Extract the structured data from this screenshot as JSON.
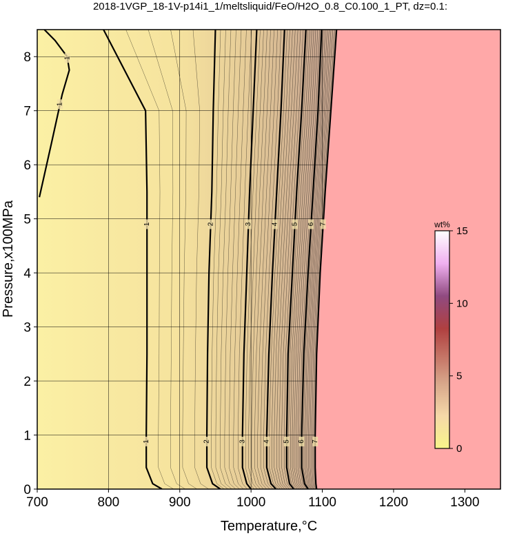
{
  "chart_data": {
    "type": "contour",
    "title": "2018-1VGP_18-1V-p14i1_1/meltsliquid/FeO/H2O_0.8_C0.100_1_PT, dz=0.1:",
    "xlabel": "Temperature,°C",
    "ylabel": "Pressure,x100MPa",
    "xlim": [
      700,
      1350
    ],
    "ylim": [
      0,
      8.5
    ],
    "xticks": [
      700,
      800,
      900,
      1000,
      1100,
      1200,
      1300
    ],
    "yticks": [
      0,
      1,
      2,
      3,
      4,
      5,
      6,
      7,
      8
    ],
    "grid": true,
    "series": [
      {
        "name": "1",
        "color": "#000000",
        "x": [
          703,
          720,
          735,
          745,
          742,
          725,
          710
        ],
        "values": [
          5.4,
          6.4,
          7.3,
          7.75,
          8.0,
          8.3,
          8.5
        ]
      },
      {
        "name": "1",
        "color": "#000000",
        "x": [
          793,
          852,
          854,
          854,
          854,
          853,
          853,
          862,
          875
        ],
        "values": [
          8.5,
          7.0,
          5.5,
          4.0,
          2.5,
          1.0,
          0.4,
          0.1,
          0
        ]
      },
      {
        "name": "2",
        "color": "#000000",
        "x": [
          950,
          947,
          945,
          941,
          939,
          938,
          938,
          946,
          957
        ],
        "values": [
          8.5,
          7.0,
          5.5,
          4.0,
          2.5,
          1.0,
          0.4,
          0.1,
          0
        ]
      },
      {
        "name": "3",
        "color": "#000000",
        "x": [
          1008,
          1003,
          998,
          994,
          990,
          988,
          988,
          994,
          1000
        ],
        "values": [
          8.5,
          7.0,
          5.5,
          4.0,
          2.5,
          1.0,
          0.4,
          0.1,
          0
        ]
      },
      {
        "name": "4",
        "color": "#000000",
        "x": [
          1047,
          1042,
          1036,
          1030,
          1025,
          1022,
          1022,
          1028,
          1035
        ],
        "values": [
          8.5,
          7.0,
          5.5,
          4.0,
          2.5,
          1.0,
          0.4,
          0.1,
          0
        ]
      },
      {
        "name": "5",
        "color": "#000000",
        "x": [
          1077,
          1071,
          1064,
          1058,
          1052,
          1050,
          1050,
          1054,
          1060
        ],
        "values": [
          8.5,
          7.0,
          5.5,
          4.0,
          2.5,
          1.0,
          0.4,
          0.1,
          0
        ]
      },
      {
        "name": "6",
        "color": "#000000",
        "x": [
          1099,
          1094,
          1087,
          1080,
          1074,
          1071,
          1071,
          1075,
          1080
        ],
        "values": [
          8.5,
          7.0,
          5.5,
          4.0,
          2.5,
          1.0,
          0.4,
          0.1,
          0
        ]
      },
      {
        "name": "7",
        "color": "#000000",
        "x": [
          1120,
          1112,
          1104,
          1097,
          1092,
          1090,
          1090,
          1091,
          1092
        ],
        "values": [
          8.5,
          7.0,
          5.5,
          4.0,
          2.5,
          1.0,
          0.4,
          0.1,
          0
        ]
      }
    ],
    "colorbar": {
      "label": "wt%",
      "lim": [
        0,
        15
      ],
      "ticks": [
        0,
        5,
        10,
        15
      ]
    }
  }
}
